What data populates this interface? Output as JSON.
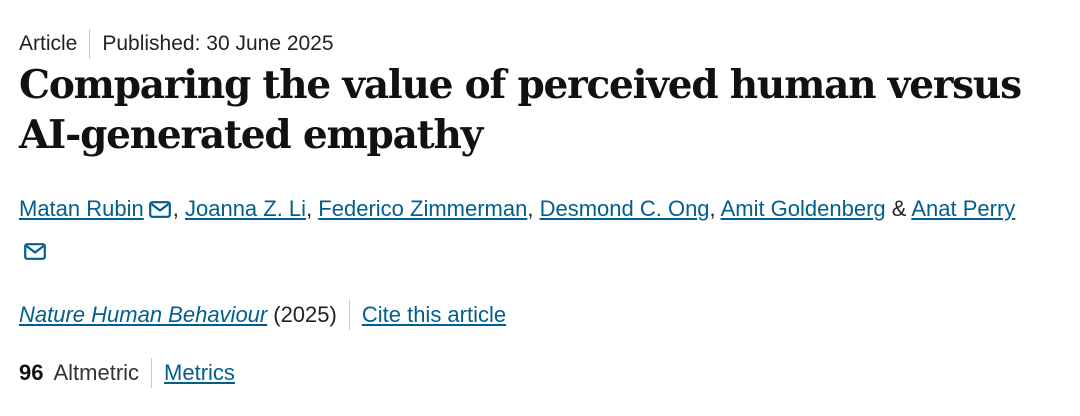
{
  "article": {
    "type": "Article",
    "published": "Published: 30 June 2025",
    "title": "Comparing the value of perceived human versus AI-generated empathy"
  },
  "authors": [
    {
      "name": "Matan Rubin",
      "has_email_icon": true
    },
    {
      "name": "Joanna Z. Li",
      "has_email_icon": false
    },
    {
      "name": "Federico Zimmerman",
      "has_email_icon": false
    },
    {
      "name": "Desmond C. Ong",
      "has_email_icon": false
    },
    {
      "name": "Amit Goldenberg",
      "has_email_icon": false
    },
    {
      "name": "Anat Perry",
      "has_email_icon": true
    }
  ],
  "separators": {
    "comma": ", ",
    "ampersand": " & "
  },
  "journal": {
    "name": "Nature Human Behaviour",
    "year": "(2025)",
    "cite_label": "Cite this article"
  },
  "metrics": {
    "altmetric_count": "96",
    "altmetric_label": "Altmetric",
    "metrics_link": "Metrics"
  },
  "colors": {
    "link": "#025e8d",
    "text": "#222222",
    "separator": "#c9c9c9"
  },
  "icons": {
    "email": "envelope-icon"
  }
}
